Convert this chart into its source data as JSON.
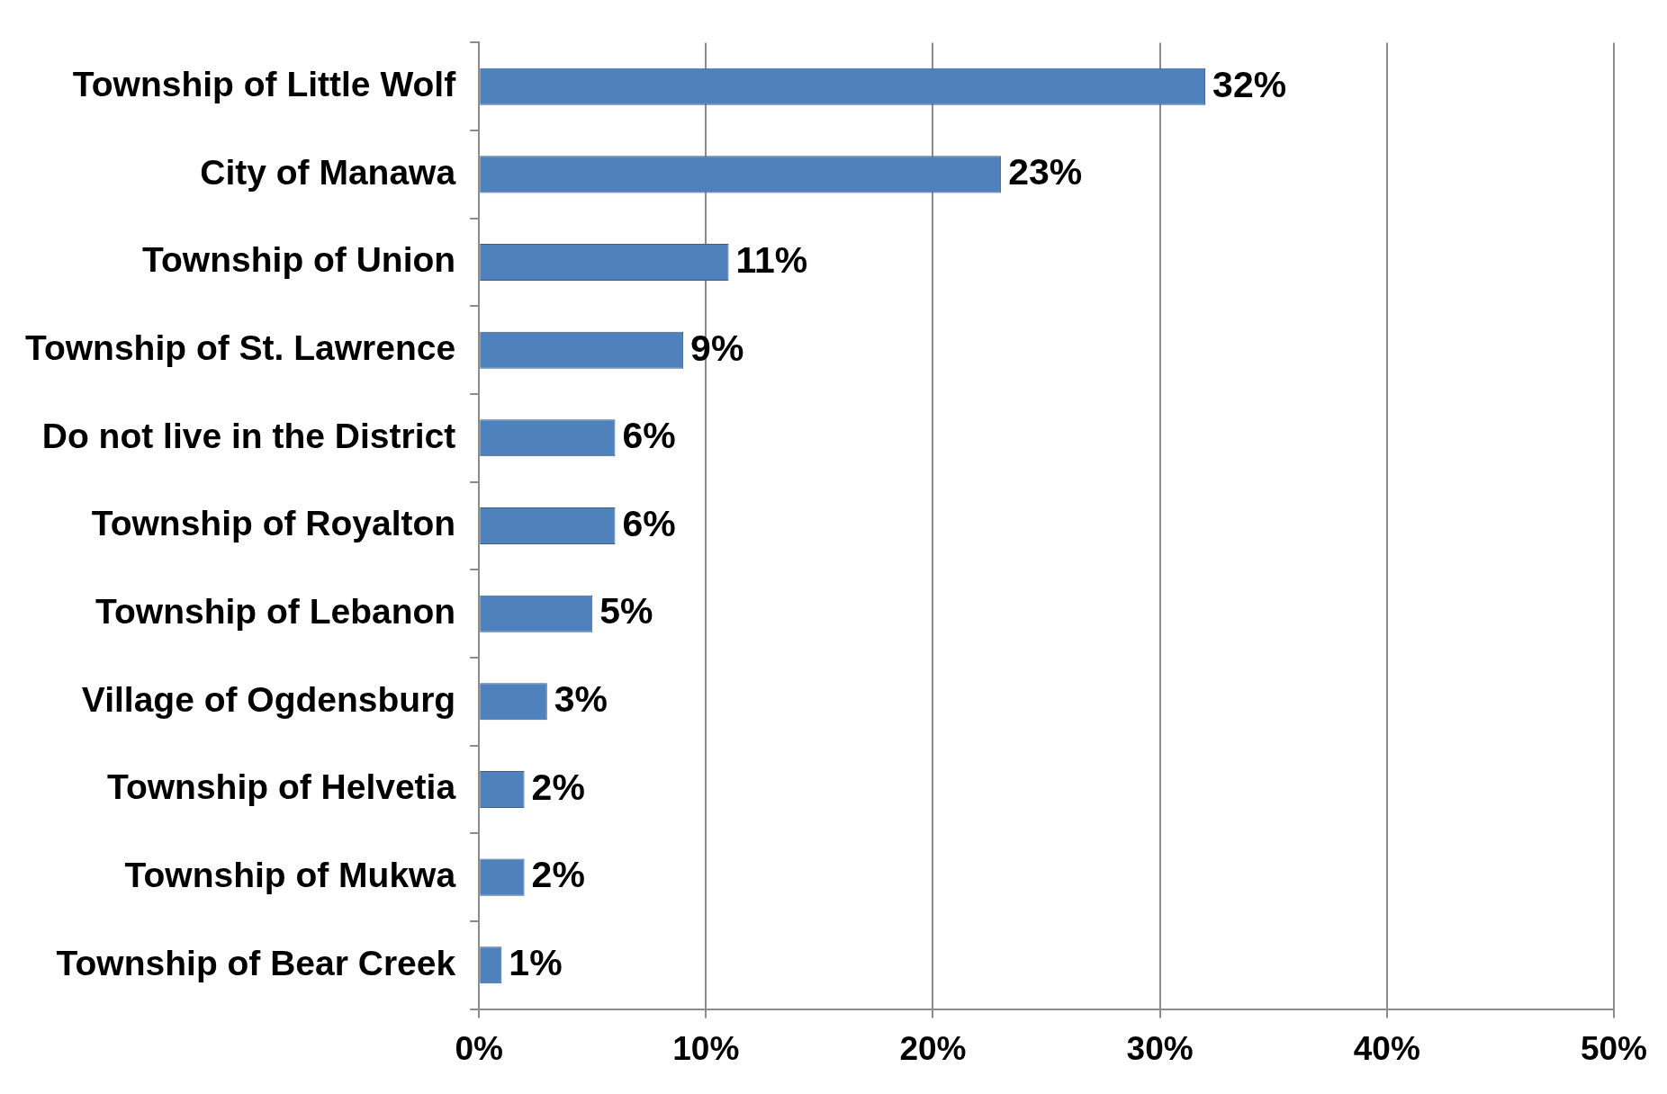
{
  "chart_data": {
    "type": "bar",
    "orientation": "horizontal",
    "categories": [
      "Township of Little Wolf",
      "City of Manawa",
      "Township of Union",
      "Township of St. Lawrence",
      "Do not live in the District",
      "Township of Royalton",
      "Township of Lebanon",
      "Village of Ogdensburg",
      "Township of Helvetia",
      "Township of Mukwa",
      "Township of Bear Creek"
    ],
    "values": [
      32,
      23,
      11,
      9,
      6,
      6,
      5,
      3,
      2,
      2,
      1
    ],
    "color": "#4f81bd",
    "value_labels": [
      "32%",
      "23%",
      "11%",
      "9%",
      "6%",
      "6%",
      "5%",
      "3%",
      "2%",
      "2%",
      "1%"
    ],
    "xlim": [
      0,
      50
    ],
    "xticks": [
      {
        "value": 0,
        "label": "0%"
      },
      {
        "value": 10,
        "label": "10%"
      },
      {
        "value": 20,
        "label": "20%"
      },
      {
        "value": 30,
        "label": "30%"
      },
      {
        "value": 40,
        "label": "40%"
      },
      {
        "value": 50,
        "label": "50%"
      }
    ],
    "grid": "x"
  }
}
